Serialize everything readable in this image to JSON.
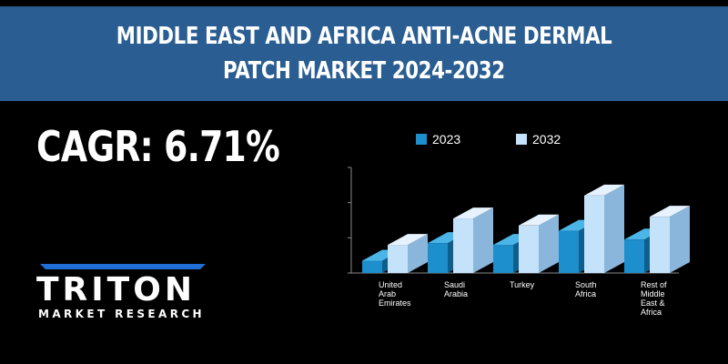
{
  "header": {
    "title_line1": "MIDDLE EAST AND AFRICA ANTI-ACNE DERMAL",
    "title_line2": "PATCH MARKET 2024-2032"
  },
  "cagr_text": "CAGR: 6.71%",
  "logo": {
    "text": "TRITON",
    "subtitle": "MARKET RESEARCH"
  },
  "colors": {
    "banner": "#2a5d91",
    "series_2023": "#1c8fcc",
    "series_2032": "#c5e2fb",
    "logo_accent": "#1f6fd6"
  },
  "chart_data": {
    "type": "bar",
    "three_d": true,
    "categories": [
      [
        "United",
        "Arab",
        "Emirates"
      ],
      [
        "Saudi",
        "Arabia"
      ],
      [
        "Turkey"
      ],
      [
        "South",
        "Africa"
      ],
      [
        "Rest of",
        "Middle",
        "East &",
        "Africa"
      ]
    ],
    "series": [
      {
        "name": "2023",
        "values": [
          0.35,
          0.85,
          0.8,
          1.2,
          0.95
        ]
      },
      {
        "name": "2032",
        "values": [
          0.8,
          1.55,
          1.35,
          2.2,
          1.6
        ]
      }
    ],
    "ylim": [
      0,
      3
    ],
    "y_tick_labels_visible": false,
    "legend_position": "top",
    "title": "",
    "xlabel": "",
    "ylabel": ""
  }
}
